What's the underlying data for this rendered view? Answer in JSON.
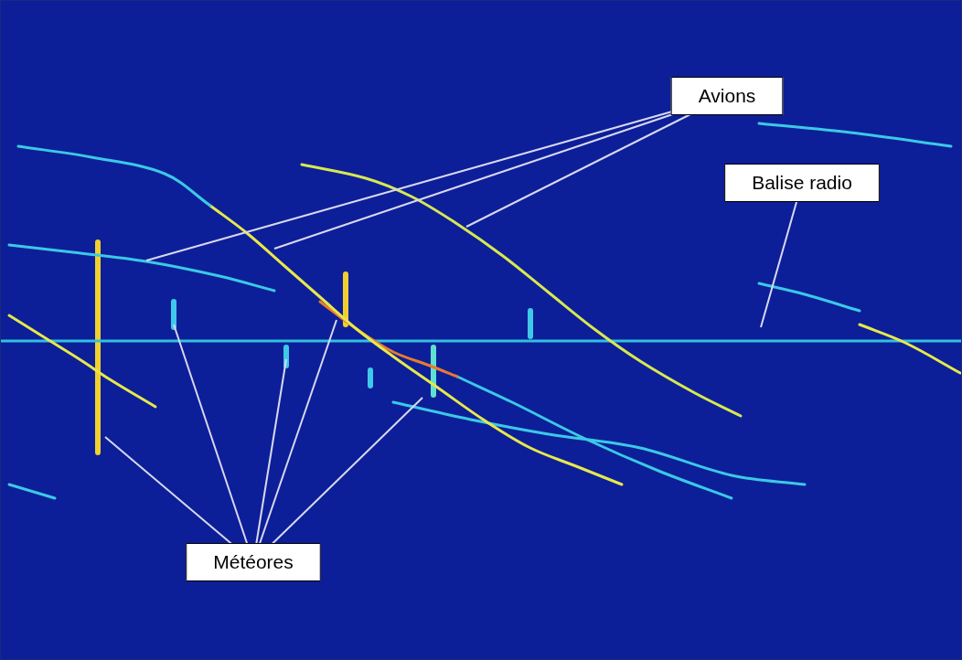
{
  "chart_data": {
    "type": "scatter",
    "grid": false,
    "tick_labels": false,
    "xlim": [
      0,
      1052
    ],
    "ylim": [
      0,
      722
    ],
    "series": [
      {
        "name": "Avions",
        "type": "line",
        "color": "#3cc8e6",
        "x": [
          20,
          100,
          180,
          230
        ],
        "values": [
          562,
          550,
          532,
          497
        ]
      },
      {
        "name": "Avions",
        "type": "line",
        "color": "#e8e84a",
        "x": [
          230,
          270,
          310,
          350,
          390,
          430,
          480,
          530,
          580,
          630,
          680
        ],
        "values": [
          497,
          467,
          432,
          397,
          362,
          332,
          297,
          262,
          232,
          212,
          192
        ]
      },
      {
        "name": "Avions",
        "type": "line",
        "color": "#d8e850",
        "x": [
          330,
          400,
          450,
          500,
          550,
          600,
          650,
          700,
          760,
          810
        ],
        "values": [
          542,
          527,
          507,
          477,
          442,
          402,
          362,
          327,
          292,
          267
        ]
      },
      {
        "name": "Avions",
        "type": "line",
        "color": "#3cc8e6",
        "x": [
          10,
          80,
          160,
          240,
          300
        ],
        "values": [
          454,
          446,
          436,
          420,
          404
        ]
      },
      {
        "name": "Avions",
        "type": "line",
        "color": "#e8e84a",
        "x": [
          10,
          50,
          90,
          120,
          170
        ],
        "values": [
          377,
          352,
          327,
          307,
          277
        ]
      },
      {
        "name": "Avions",
        "type": "line",
        "color": "#e87a30",
        "x": [
          350,
          390,
          430,
          470,
          500
        ],
        "values": [
          392,
          362,
          337,
          322,
          310
        ]
      },
      {
        "name": "Avions",
        "type": "line",
        "color": "#3cc8e6",
        "x": [
          500,
          560,
          640,
          720,
          800
        ],
        "values": [
          310,
          282,
          242,
          207,
          177
        ]
      },
      {
        "name": "Avions",
        "type": "line",
        "color": "#e8e84a",
        "x": [
          940,
          990,
          1050
        ],
        "values": [
          367,
          347,
          314
        ]
      },
      {
        "name": "Avions",
        "type": "line",
        "color": "#3cc8e6",
        "x": [
          830,
          930,
          1040
        ],
        "values": [
          587,
          577,
          562
        ]
      },
      {
        "name": "Avions",
        "type": "line",
        "color": "#3cc8e6",
        "x": [
          830,
          880,
          940
        ],
        "values": [
          412,
          400,
          382
        ]
      },
      {
        "name": "Avions",
        "type": "line",
        "color": "#3cc8e6",
        "x": [
          430,
          520,
          600,
          700,
          800,
          880
        ],
        "values": [
          282,
          262,
          247,
          232,
          202,
          192
        ]
      },
      {
        "name": "Avions",
        "type": "line",
        "color": "#3cc8e6",
        "x": [
          10,
          60
        ],
        "values": [
          192,
          177
        ]
      },
      {
        "name": "Balise radio",
        "type": "line",
        "color": "#30c0e0",
        "x": [
          0,
          1052
        ],
        "values": [
          349,
          349
        ]
      },
      {
        "name": "Météores",
        "type": "line",
        "color": "#f0d030",
        "x": [
          107,
          107
        ],
        "values": [
          457,
          227
        ]
      },
      {
        "name": "Météores",
        "type": "line",
        "color": "#e02020",
        "x": [
          107,
          107
        ],
        "values": [
          327,
          297
        ]
      },
      {
        "name": "Météores",
        "type": "line",
        "color": "#40c8e8",
        "x": [
          190,
          190
        ],
        "values": [
          392,
          364
        ]
      },
      {
        "name": "Météores",
        "type": "line",
        "color": "#f0d030",
        "x": [
          378,
          378
        ],
        "values": [
          422,
          367
        ]
      },
      {
        "name": "Météores",
        "type": "line",
        "color": "#e02020",
        "x": [
          378,
          378
        ],
        "values": [
          417,
          392
        ]
      },
      {
        "name": "Météores",
        "type": "line",
        "color": "#60e0d0",
        "x": [
          474,
          474
        ],
        "values": [
          342,
          290
        ]
      },
      {
        "name": "Météores",
        "type": "line",
        "color": "#40c8e8",
        "x": [
          580,
          580
        ],
        "values": [
          382,
          354
        ]
      },
      {
        "name": "Météores",
        "type": "line",
        "color": "#40c8e8",
        "x": [
          405,
          405
        ],
        "values": [
          317,
          300
        ]
      },
      {
        "name": "Météores",
        "type": "line",
        "color": "#40c8e8",
        "x": [
          313,
          313
        ],
        "values": [
          342,
          322
        ]
      }
    ],
    "annotations": [
      {
        "text": "Avions",
        "x": 795,
        "y": 617,
        "targets": [
          [
            160,
            437
          ],
          [
            300,
            450
          ],
          [
            510,
            474
          ]
        ]
      },
      {
        "text": "Balise radio",
        "x": 877,
        "y": 522,
        "targets": [
          [
            832,
            364
          ]
        ]
      },
      {
        "text": "Météores",
        "x": 277,
        "y": 107,
        "targets": [
          [
            115,
            244
          ],
          [
            190,
            367
          ],
          [
            313,
            329
          ],
          [
            368,
            372
          ],
          [
            462,
            287
          ]
        ]
      }
    ]
  }
}
